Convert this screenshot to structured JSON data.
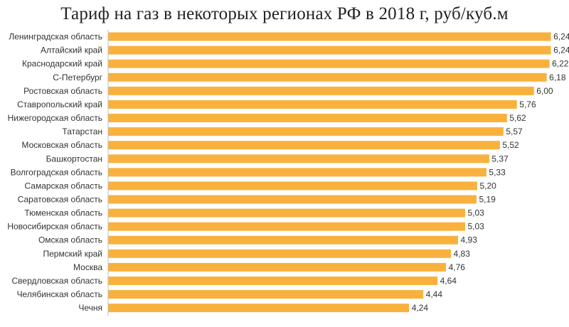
{
  "chart_data": {
    "type": "bar",
    "orientation": "horizontal",
    "title": "Тариф на газ в некоторых регионах РФ в 2018 г, руб/куб.м",
    "categories": [
      "Ленинградская область",
      "Алтайский край",
      "Краснодарский край",
      "С-Петербург",
      "Ростовская область",
      "Ставропольский край",
      "Нижегородская область",
      "Татарстан",
      "Московская область",
      "Башкортостан",
      "Волгоградская область",
      "Самарская область",
      "Саратовская область",
      "Тюменская область",
      "Новосибирская область",
      "Омская область",
      "Пермский край",
      "Москва",
      "Свердловская область",
      "Челябинская область",
      "Чечня"
    ],
    "values": [
      6.24,
      6.24,
      6.22,
      6.18,
      6.0,
      5.76,
      5.62,
      5.57,
      5.52,
      5.37,
      5.33,
      5.2,
      5.19,
      5.03,
      5.03,
      4.93,
      4.83,
      4.76,
      4.64,
      4.44,
      4.24
    ],
    "value_labels": [
      "6,24",
      "6,24",
      "6,22",
      "6,18",
      "6,00",
      "5,76",
      "5,62",
      "5,57",
      "5,52",
      "5,37",
      "5,33",
      "5,20",
      "5,19",
      "5,03",
      "5,03",
      "4,93",
      "4,83",
      "4,76",
      "4,64",
      "4,44",
      "4,24"
    ],
    "xlim": [
      0,
      7
    ],
    "grid": false,
    "legend": "none",
    "bar_color": "#F9B13E",
    "axis_color": "#BFBFBF"
  }
}
